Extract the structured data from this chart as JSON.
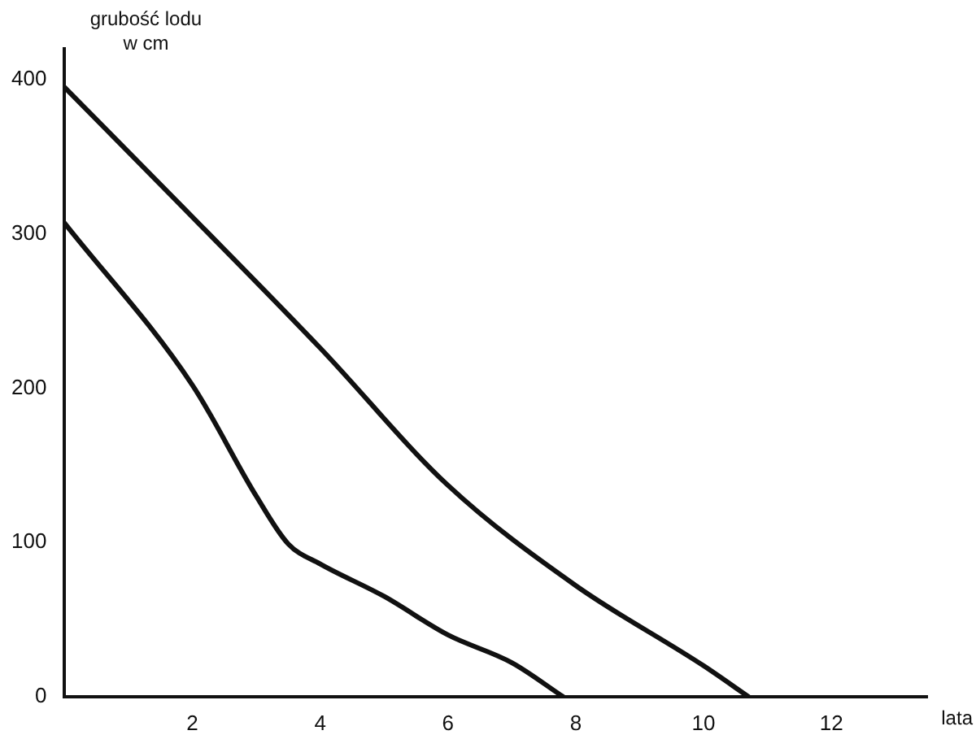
{
  "chart_data": {
    "type": "line",
    "ylabel": "grubość lodu\nw cm",
    "xlabel": "lata",
    "xlim": [
      0,
      13.5
    ],
    "xticks": [
      2,
      4,
      6,
      8,
      10,
      12
    ],
    "ylim": [
      0,
      420
    ],
    "yticks": [
      0,
      100,
      200,
      300,
      400
    ],
    "grid": false,
    "legend": false,
    "marker": "none",
    "line_style": "solid",
    "series": [
      {
        "color": "#111111",
        "x": [
          0,
          2,
          4,
          6,
          8,
          10,
          10.7
        ],
        "values": [
          395,
          311,
          226,
          137,
          72,
          20,
          0
        ]
      },
      {
        "color": "#111111",
        "x": [
          0,
          2,
          3,
          3.5,
          4,
          5,
          6,
          7,
          7.8
        ],
        "values": [
          307,
          202,
          130,
          99,
          86,
          65,
          40,
          22,
          0
        ]
      }
    ]
  }
}
